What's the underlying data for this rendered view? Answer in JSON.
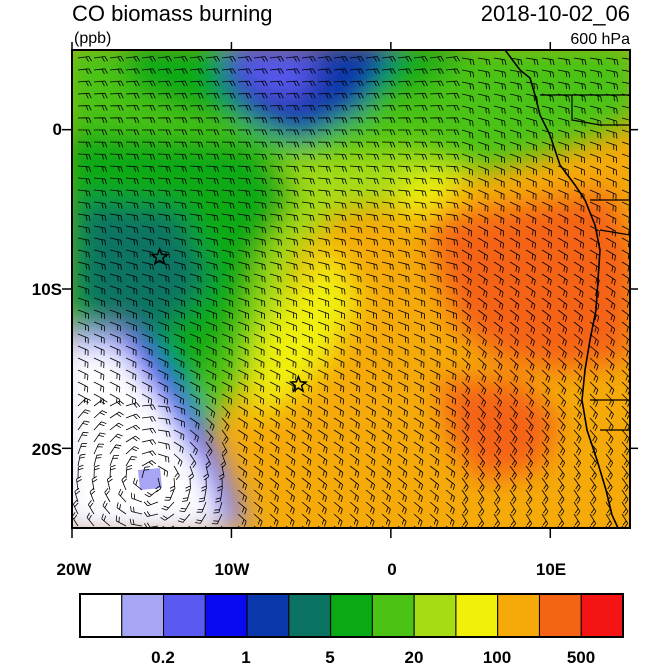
{
  "header": {
    "title": "CO biomass burning",
    "units": "(ppb)",
    "datetime": "2018-10-02_06",
    "level": "600 hPa"
  },
  "map": {
    "lon_range": [
      -20,
      15
    ],
    "lat_range": [
      -25,
      5
    ],
    "lat_ticks": [
      {
        "value": 0,
        "label": "0"
      },
      {
        "value": -10,
        "label": "10S"
      },
      {
        "value": -20,
        "label": "20S"
      }
    ],
    "lon_ticks": [
      {
        "value": -20,
        "label": "20W"
      },
      {
        "value": -10,
        "label": "10W"
      },
      {
        "value": 0,
        "label": "0"
      },
      {
        "value": 10,
        "label": "10E"
      }
    ],
    "markers": [
      {
        "lon": -14.5,
        "lat": -8.0,
        "type": "star"
      },
      {
        "lon": -5.8,
        "lat": -16.0,
        "type": "star"
      }
    ]
  },
  "colorbar": {
    "colors": [
      "#ffffff",
      "#a6a6f5",
      "#5a5af0",
      "#0a0af0",
      "#0a37aa",
      "#0a7362",
      "#0aaa14",
      "#4bc314",
      "#a5dc14",
      "#f0f00a",
      "#f5aa0a",
      "#f56414",
      "#f51414"
    ],
    "labels": [
      "0.2",
      "1",
      "5",
      "20",
      "100",
      "500"
    ]
  }
}
